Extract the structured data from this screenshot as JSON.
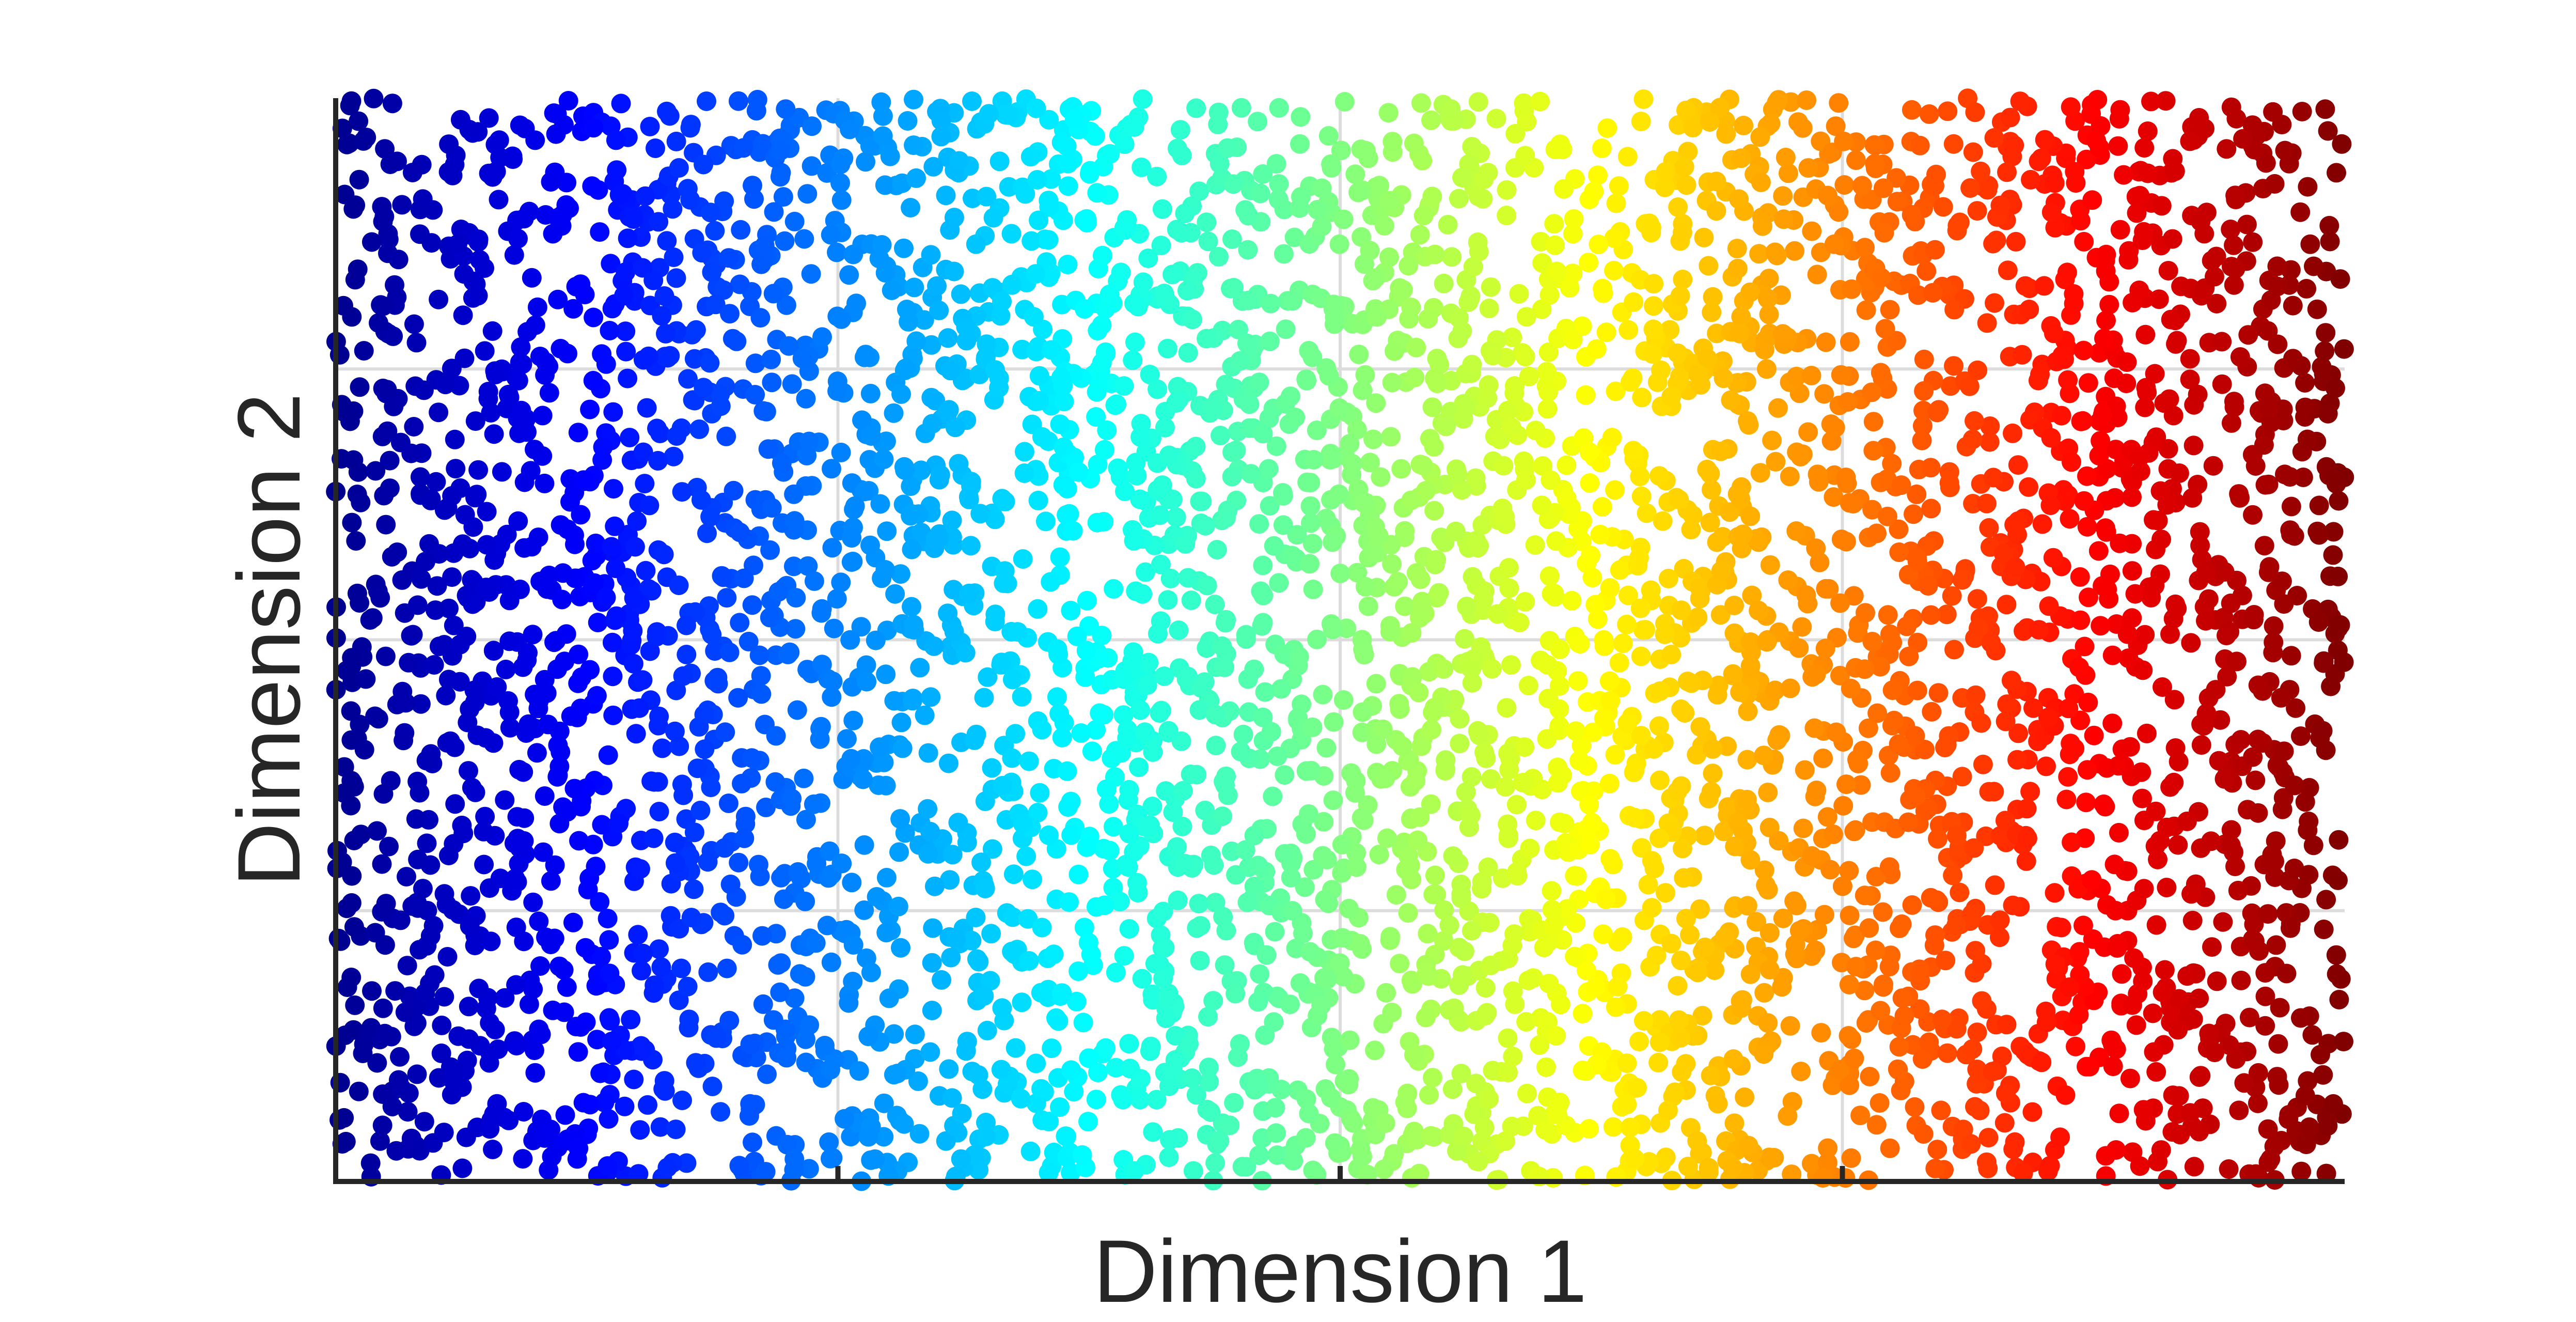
{
  "chart_data": {
    "type": "scatter",
    "title": "",
    "xlabel": "Dimension 1",
    "ylabel": "Dimension 2",
    "xlim": [
      0,
      1
    ],
    "ylim": [
      0,
      1
    ],
    "grid": true,
    "x_tick_labels": [],
    "y_tick_labels": [],
    "legend": "none",
    "point_count_estimate": 5000,
    "color_encoding": "jet colormap along Dimension 1",
    "colormap_stops": [
      "#00008f",
      "#0000ff",
      "#0080ff",
      "#00ffff",
      "#80ff80",
      "#ffff00",
      "#ff8000",
      "#ff0000",
      "#800000"
    ],
    "distribution": "uniform random over both dimensions"
  }
}
